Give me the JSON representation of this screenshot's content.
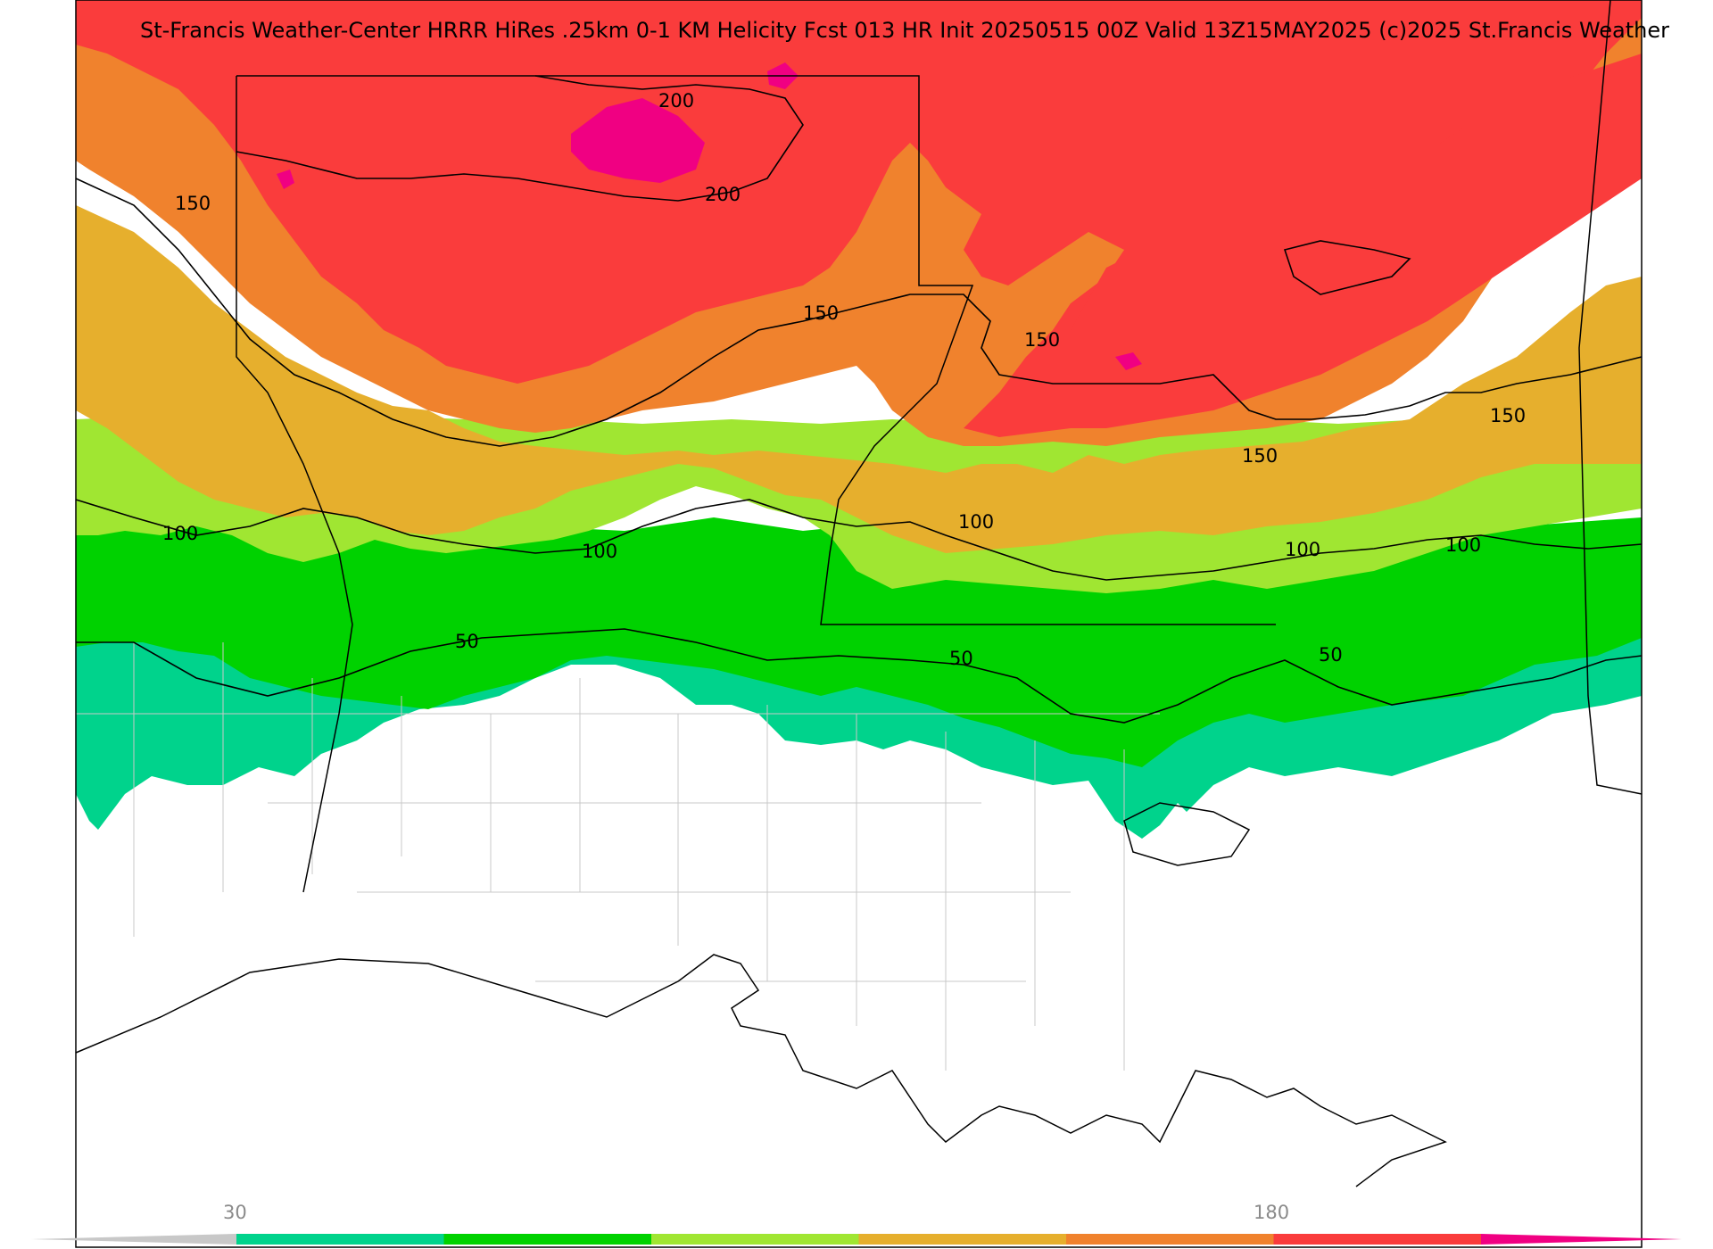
{
  "header": {
    "title": "St-Francis Weather-Center HRRR HiRes .25km 0-1 KM Helicity Fcst 013 HR Init 20250515 00Z  Valid 13Z15MAY2025   (c)2025 St.Francis Weather"
  },
  "contour_labels": [
    "200",
    "200",
    "150",
    "150",
    "150",
    "150",
    "150",
    "100",
    "100",
    "100",
    "100",
    "100",
    "50",
    "50",
    "50"
  ],
  "colorbar": {
    "tick_labels": [
      "30",
      "180"
    ],
    "colors": [
      "#c8c8c8",
      "#00d38c",
      "#00d200",
      "#a0e632",
      "#e6af2d",
      "#f0822d",
      "#fa3c3c",
      "#f00082"
    ]
  },
  "shading_colors": {
    "white": "#ffffff",
    "teal": "#00d38c",
    "green": "#00d200",
    "light_green": "#a0e632",
    "yellow_orange": "#e6af2d",
    "orange": "#f0822d",
    "red": "#fa3c3c",
    "magenta": "#f00082"
  }
}
